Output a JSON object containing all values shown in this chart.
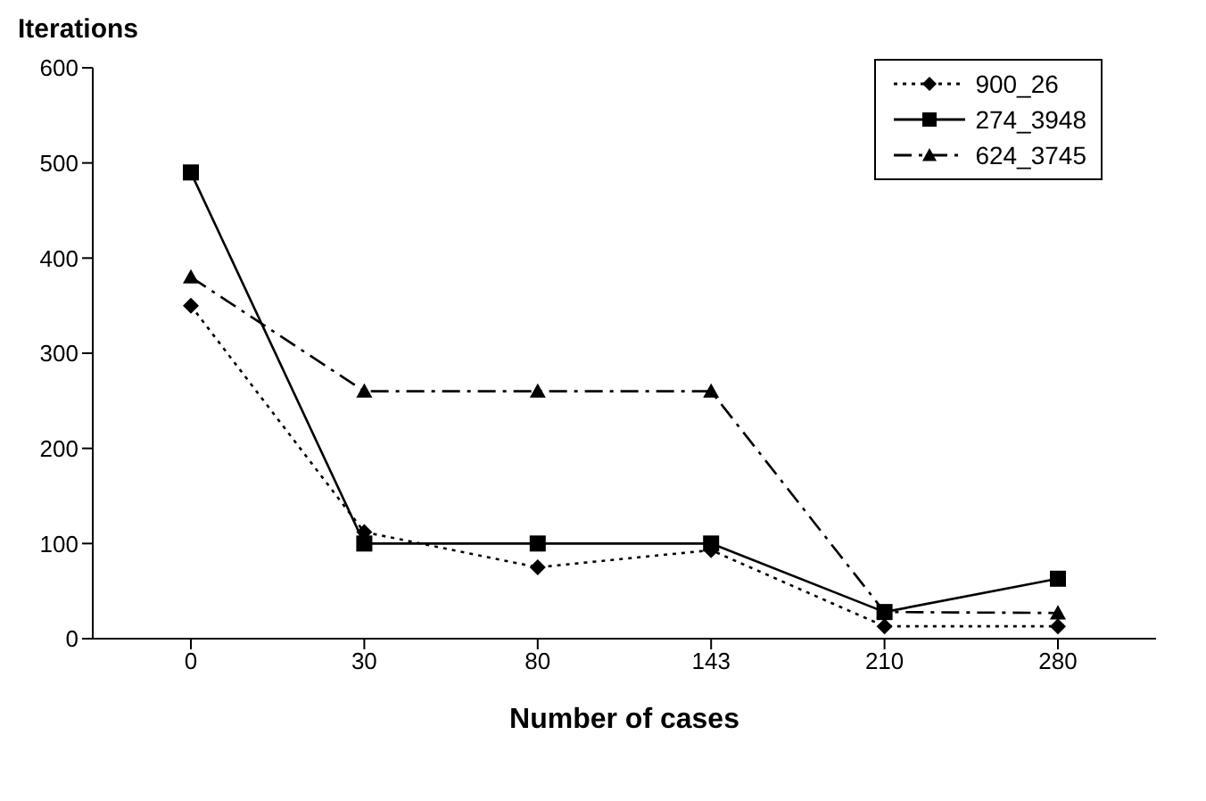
{
  "chart_data": {
    "type": "line",
    "ylabel": "Iterations",
    "xlabel": "Number of cases",
    "categories": [
      "0",
      "30",
      "80",
      "143",
      "210",
      "280"
    ],
    "series": [
      {
        "name": "900_26",
        "color": "#000000",
        "marker": "diamond",
        "line_style": "dotted",
        "values": [
          350,
          112,
          75,
          93,
          13,
          13
        ]
      },
      {
        "name": "274_3948",
        "color": "#000000",
        "marker": "square",
        "line_style": "solid",
        "values": [
          490,
          100,
          100,
          100,
          28,
          63
        ]
      },
      {
        "name": "624_3745",
        "color": "#000000",
        "marker": "triangle",
        "line_style": "dashed",
        "values": [
          380,
          260,
          260,
          260,
          28,
          27
        ]
      }
    ],
    "ylim": [
      0,
      600
    ],
    "yticks": [
      0,
      100,
      200,
      300,
      400,
      500,
      600
    ],
    "grid": false,
    "legend": "top right"
  }
}
